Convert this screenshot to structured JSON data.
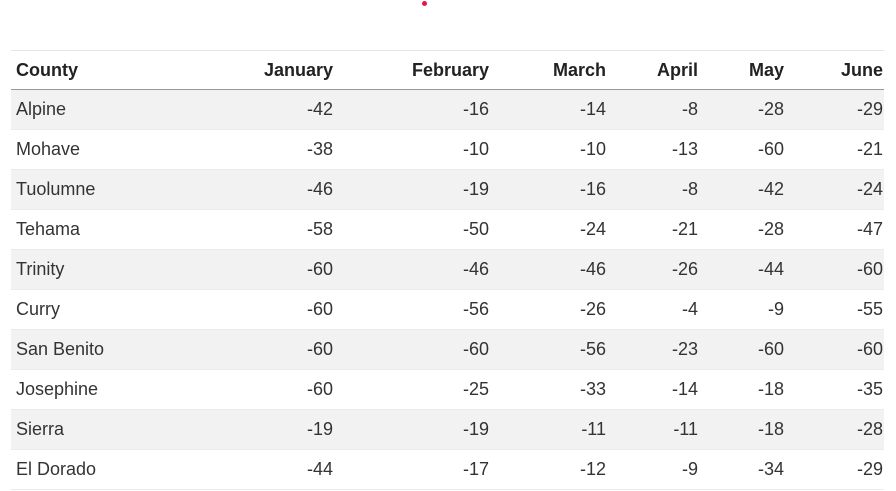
{
  "colors": {
    "accent_dot": "#e8173f",
    "stripe": "#f2f2f2",
    "header_rule": "#999999"
  },
  "chart_data": {
    "type": "table",
    "columns": [
      "County",
      "January",
      "February",
      "March",
      "April",
      "May",
      "June"
    ],
    "rows": [
      [
        "Alpine",
        "-42",
        "-16",
        "-14",
        "-8",
        "-28",
        "-29"
      ],
      [
        "Mohave",
        "-38",
        "-10",
        "-10",
        "-13",
        "-60",
        "-21"
      ],
      [
        "Tuolumne",
        "-46",
        "-19",
        "-16",
        "-8",
        "-42",
        "-24"
      ],
      [
        "Tehama",
        "-58",
        "-50",
        "-24",
        "-21",
        "-28",
        "-47"
      ],
      [
        "Trinity",
        "-60",
        "-46",
        "-46",
        "-26",
        "-44",
        "-60"
      ],
      [
        "Curry",
        "-60",
        "-56",
        "-26",
        "-4",
        "-9",
        "-55"
      ],
      [
        "San Benito",
        "-60",
        "-60",
        "-56",
        "-23",
        "-60",
        "-60"
      ],
      [
        "Josephine",
        "-60",
        "-25",
        "-33",
        "-14",
        "-18",
        "-35"
      ],
      [
        "Sierra",
        "-19",
        "-19",
        "-11",
        "-11",
        "-18",
        "-28"
      ],
      [
        "El Dorado",
        "-44",
        "-17",
        "-12",
        "-9",
        "-34",
        "-29"
      ]
    ]
  }
}
